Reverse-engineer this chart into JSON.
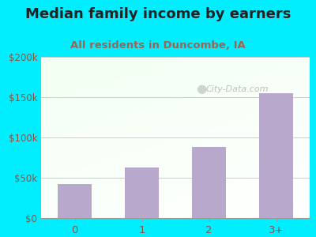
{
  "title": "Median family income by earners",
  "subtitle": "All residents in Duncombe, IA",
  "categories": [
    "0",
    "1",
    "2",
    "3+"
  ],
  "values": [
    42000,
    63000,
    88000,
    155000
  ],
  "bar_color": "#b8a8cc",
  "background_outer": "#00eeff",
  "title_color": "#222222",
  "subtitle_color": "#996655",
  "tick_label_color": "#885544",
  "ytick_labels": [
    "$0",
    "$50k",
    "$100k",
    "$150k",
    "$200k"
  ],
  "ytick_values": [
    0,
    50000,
    100000,
    150000,
    200000
  ],
  "ylim": [
    0,
    200000
  ],
  "watermark": "City-Data.com",
  "title_fontsize": 13,
  "subtitle_fontsize": 9.5
}
